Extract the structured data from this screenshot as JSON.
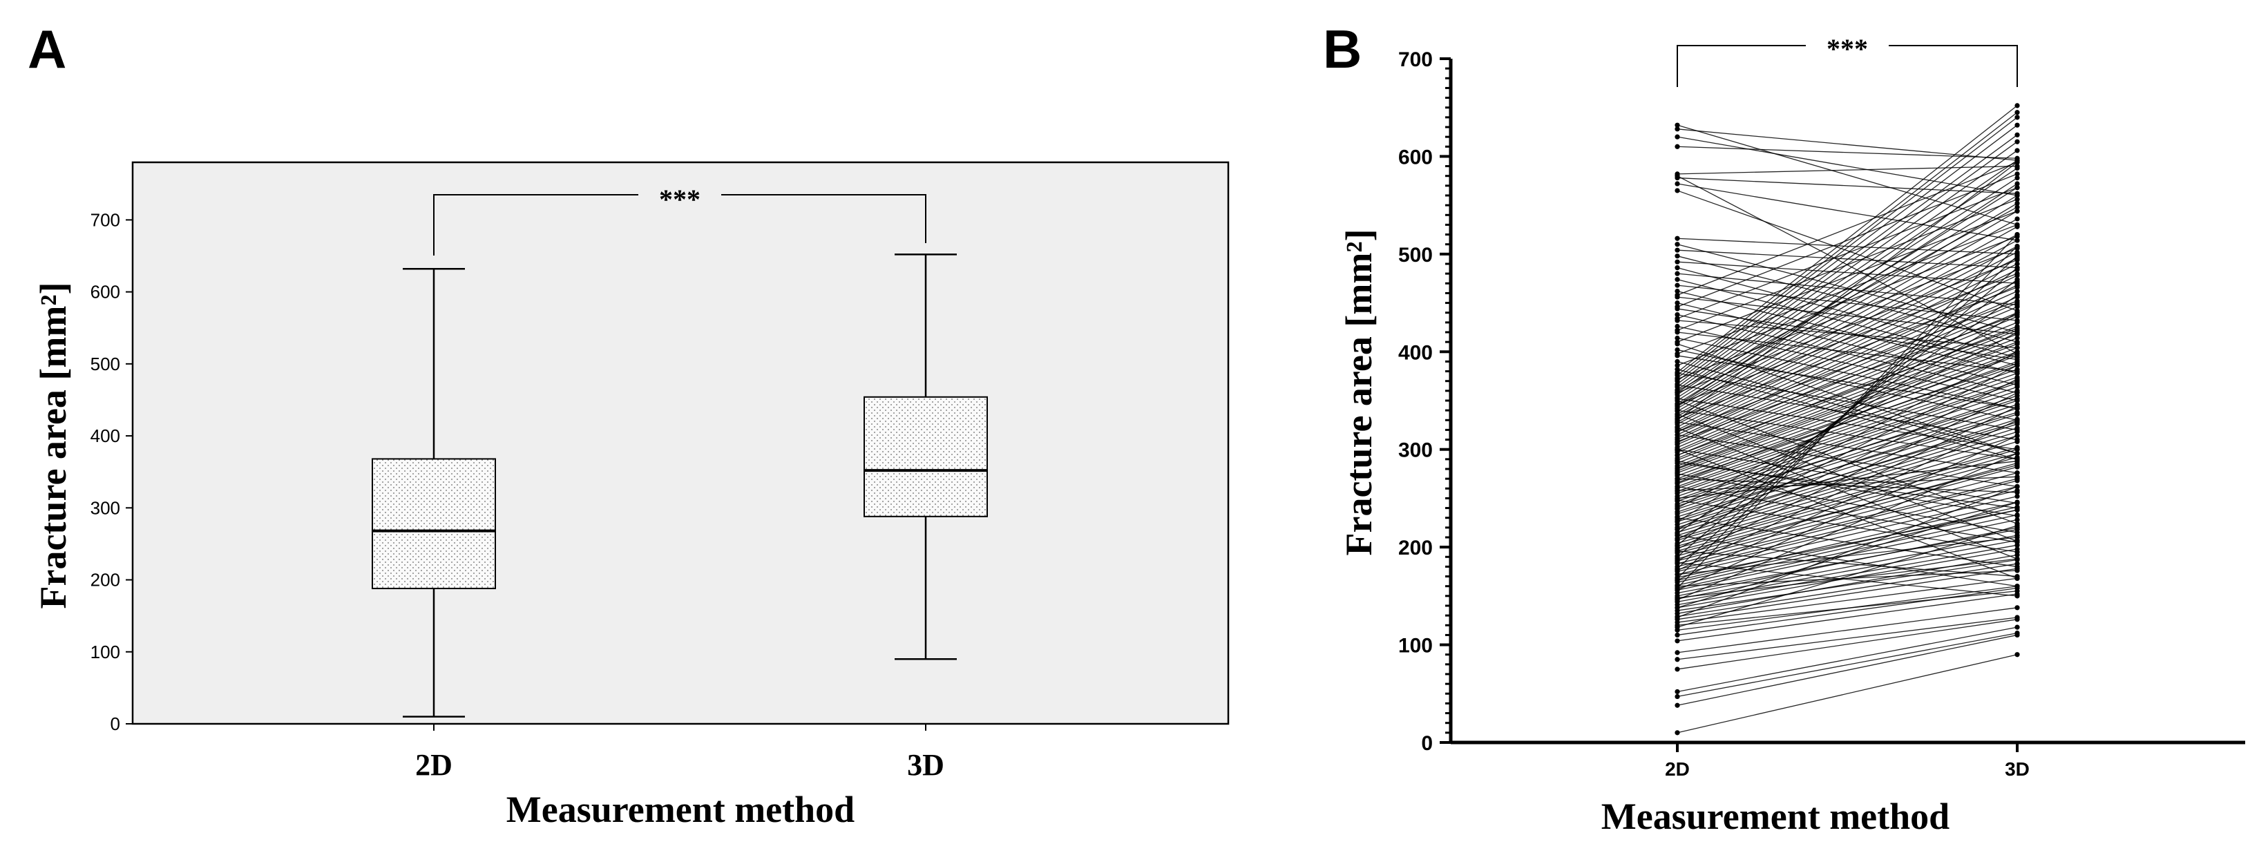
{
  "panels": {
    "a": {
      "label": "A"
    },
    "b": {
      "label": "B"
    }
  },
  "chart_data": [
    {
      "panel": "A",
      "type": "box",
      "title": "",
      "ylabel": "Fracture area [mm²]",
      "xlabel": "Measurement method",
      "categories": [
        "2D",
        "3D"
      ],
      "ylim": [
        0,
        780
      ],
      "yticks": [
        0,
        100,
        200,
        300,
        400,
        500,
        600,
        700
      ],
      "boxes": [
        {
          "category": "2D",
          "min": 10,
          "q1": 188,
          "median": 268,
          "q3": 368,
          "max": 632
        },
        {
          "category": "3D",
          "min": 90,
          "q1": 288,
          "median": 352,
          "q3": 454,
          "max": 652
        }
      ],
      "significance": {
        "label": "***",
        "between": [
          "2D",
          "3D"
        ]
      },
      "background": "#efefef",
      "box_fill": "stippled"
    },
    {
      "panel": "B",
      "type": "line",
      "title": "",
      "ylabel": "Fracture area [mm²]",
      "xlabel": "Measurement method",
      "categories": [
        "2D",
        "3D"
      ],
      "ylim": [
        0,
        700
      ],
      "yticks": [
        0,
        100,
        200,
        300,
        400,
        500,
        600,
        700
      ],
      "significance": {
        "label": "***",
        "between": [
          "2D",
          "3D"
        ]
      },
      "paired_values": [
        [
          10,
          90
        ],
        [
          38,
          110
        ],
        [
          47,
          112
        ],
        [
          52,
          118
        ],
        [
          75,
          126
        ],
        [
          85,
          128
        ],
        [
          92,
          138
        ],
        [
          104,
          152
        ],
        [
          110,
          158
        ],
        [
          115,
          160
        ],
        [
          120,
          155
        ],
        [
          123,
          168
        ],
        [
          126,
          178
        ],
        [
          129,
          183
        ],
        [
          132,
          192
        ],
        [
          135,
          187
        ],
        [
          138,
          198
        ],
        [
          141,
          202
        ],
        [
          144,
          207
        ],
        [
          147,
          212
        ],
        [
          150,
          220
        ],
        [
          153,
          218
        ],
        [
          156,
          228
        ],
        [
          158,
          233
        ],
        [
          161,
          238
        ],
        [
          164,
          241
        ],
        [
          166,
          246
        ],
        [
          169,
          238
        ],
        [
          172,
          252
        ],
        [
          175,
          258
        ],
        [
          177,
          262
        ],
        [
          180,
          268
        ],
        [
          183,
          270
        ],
        [
          186,
          276
        ],
        [
          188,
          282
        ],
        [
          191,
          286
        ],
        [
          194,
          284
        ],
        [
          196,
          292
        ],
        [
          199,
          296
        ],
        [
          201,
          300
        ],
        [
          204,
          302
        ],
        [
          207,
          308
        ],
        [
          209,
          314
        ],
        [
          212,
          318
        ],
        [
          215,
          322
        ],
        [
          218,
          326
        ],
        [
          220,
          331
        ],
        [
          223,
          328
        ],
        [
          226,
          336
        ],
        [
          228,
          342
        ],
        [
          231,
          338
        ],
        [
          234,
          346
        ],
        [
          236,
          350
        ],
        [
          239,
          355
        ],
        [
          242,
          352
        ],
        [
          244,
          360
        ],
        [
          247,
          364
        ],
        [
          249,
          368
        ],
        [
          252,
          370
        ],
        [
          255,
          374
        ],
        [
          257,
          378
        ],
        [
          260,
          382
        ],
        [
          262,
          386
        ],
        [
          265,
          390
        ],
        [
          268,
          388
        ],
        [
          270,
          396
        ],
        [
          273,
          400
        ],
        [
          276,
          404
        ],
        [
          278,
          408
        ],
        [
          281,
          414
        ],
        [
          283,
          418
        ],
        [
          286,
          422
        ],
        [
          289,
          426
        ],
        [
          291,
          430
        ],
        [
          294,
          436
        ],
        [
          297,
          440
        ],
        [
          299,
          446
        ],
        [
          302,
          450
        ],
        [
          305,
          456
        ],
        [
          307,
          462
        ],
        [
          310,
          468
        ],
        [
          312,
          472
        ],
        [
          315,
          478
        ],
        [
          318,
          484
        ],
        [
          320,
          490
        ],
        [
          323,
          496
        ],
        [
          326,
          502
        ],
        [
          328,
          508
        ],
        [
          331,
          514
        ],
        [
          334,
          520
        ],
        [
          336,
          528
        ],
        [
          339,
          536
        ],
        [
          342,
          544
        ],
        [
          344,
          552
        ],
        [
          347,
          560
        ],
        [
          350,
          568
        ],
        [
          353,
          578
        ],
        [
          356,
          588
        ],
        [
          358,
          596
        ],
        [
          361,
          606
        ],
        [
          364,
          615
        ],
        [
          367,
          622
        ],
        [
          370,
          632
        ],
        [
          373,
          640
        ],
        [
          376,
          645
        ],
        [
          379,
          652
        ],
        [
          212,
          160
        ],
        [
          230,
          180
        ],
        [
          248,
          195
        ],
        [
          262,
          205
        ],
        [
          275,
          215
        ],
        [
          288,
          232
        ],
        [
          300,
          245
        ],
        [
          315,
          262
        ],
        [
          328,
          276
        ],
        [
          340,
          290
        ],
        [
          352,
          300
        ],
        [
          366,
          310
        ],
        [
          378,
          320
        ],
        [
          390,
          296
        ],
        [
          402,
          330
        ],
        [
          414,
          342
        ],
        [
          426,
          350
        ],
        [
          438,
          358
        ],
        [
          450,
          366
        ],
        [
          462,
          378
        ],
        [
          474,
          386
        ],
        [
          486,
          394
        ],
        [
          498,
          410
        ],
        [
          510,
          420
        ],
        [
          196,
          170
        ],
        [
          184,
          150
        ],
        [
          172,
          210
        ],
        [
          160,
          176
        ],
        [
          148,
          188
        ],
        [
          138,
          246
        ],
        [
          128,
          262
        ],
        [
          118,
          222
        ],
        [
          382,
          290
        ],
        [
          396,
          342
        ],
        [
          408,
          296
        ],
        [
          420,
          380
        ],
        [
          432,
          404
        ],
        [
          444,
          392
        ],
        [
          456,
          418
        ],
        [
          468,
          432
        ],
        [
          480,
          448
        ],
        [
          492,
          470
        ],
        [
          504,
          486
        ],
        [
          516,
          500
        ],
        [
          565,
          442
        ],
        [
          572,
          514
        ],
        [
          578,
          562
        ],
        [
          582,
          590
        ],
        [
          610,
          598
        ],
        [
          620,
          560
        ],
        [
          628,
          596
        ],
        [
          632,
          530
        ],
        [
          580,
          398
        ],
        [
          360,
          548
        ],
        [
          345,
          572
        ],
        [
          330,
          594
        ],
        [
          240,
          420
        ],
        [
          226,
          440
        ],
        [
          214,
          458
        ],
        [
          202,
          474
        ],
        [
          190,
          486
        ],
        [
          178,
          498
        ],
        [
          168,
          508
        ],
        [
          158,
          520
        ],
        [
          300,
          168
        ],
        [
          322,
          188
        ],
        [
          336,
          206
        ],
        [
          350,
          224
        ],
        [
          286,
          240
        ],
        [
          270,
          256
        ],
        [
          258,
          272
        ],
        [
          250,
          288
        ],
        [
          266,
          398
        ],
        [
          280,
          410
        ],
        [
          294,
          424
        ],
        [
          308,
          438
        ],
        [
          318,
          452
        ],
        [
          332,
          466
        ],
        [
          346,
          480
        ],
        [
          358,
          494
        ],
        [
          372,
          506
        ],
        [
          386,
          518
        ],
        [
          398,
          530
        ],
        [
          410,
          544
        ],
        [
          422,
          556
        ],
        [
          434,
          568
        ],
        [
          446,
          582
        ],
        [
          458,
          594
        ],
        [
          146,
          296
        ],
        [
          156,
          314
        ],
        [
          166,
          330
        ],
        [
          176,
          344
        ],
        [
          186,
          358
        ],
        [
          198,
          372
        ],
        [
          208,
          386
        ],
        [
          218,
          400
        ]
      ],
      "marker_color": "#000000",
      "line_color": "#000000"
    }
  ]
}
